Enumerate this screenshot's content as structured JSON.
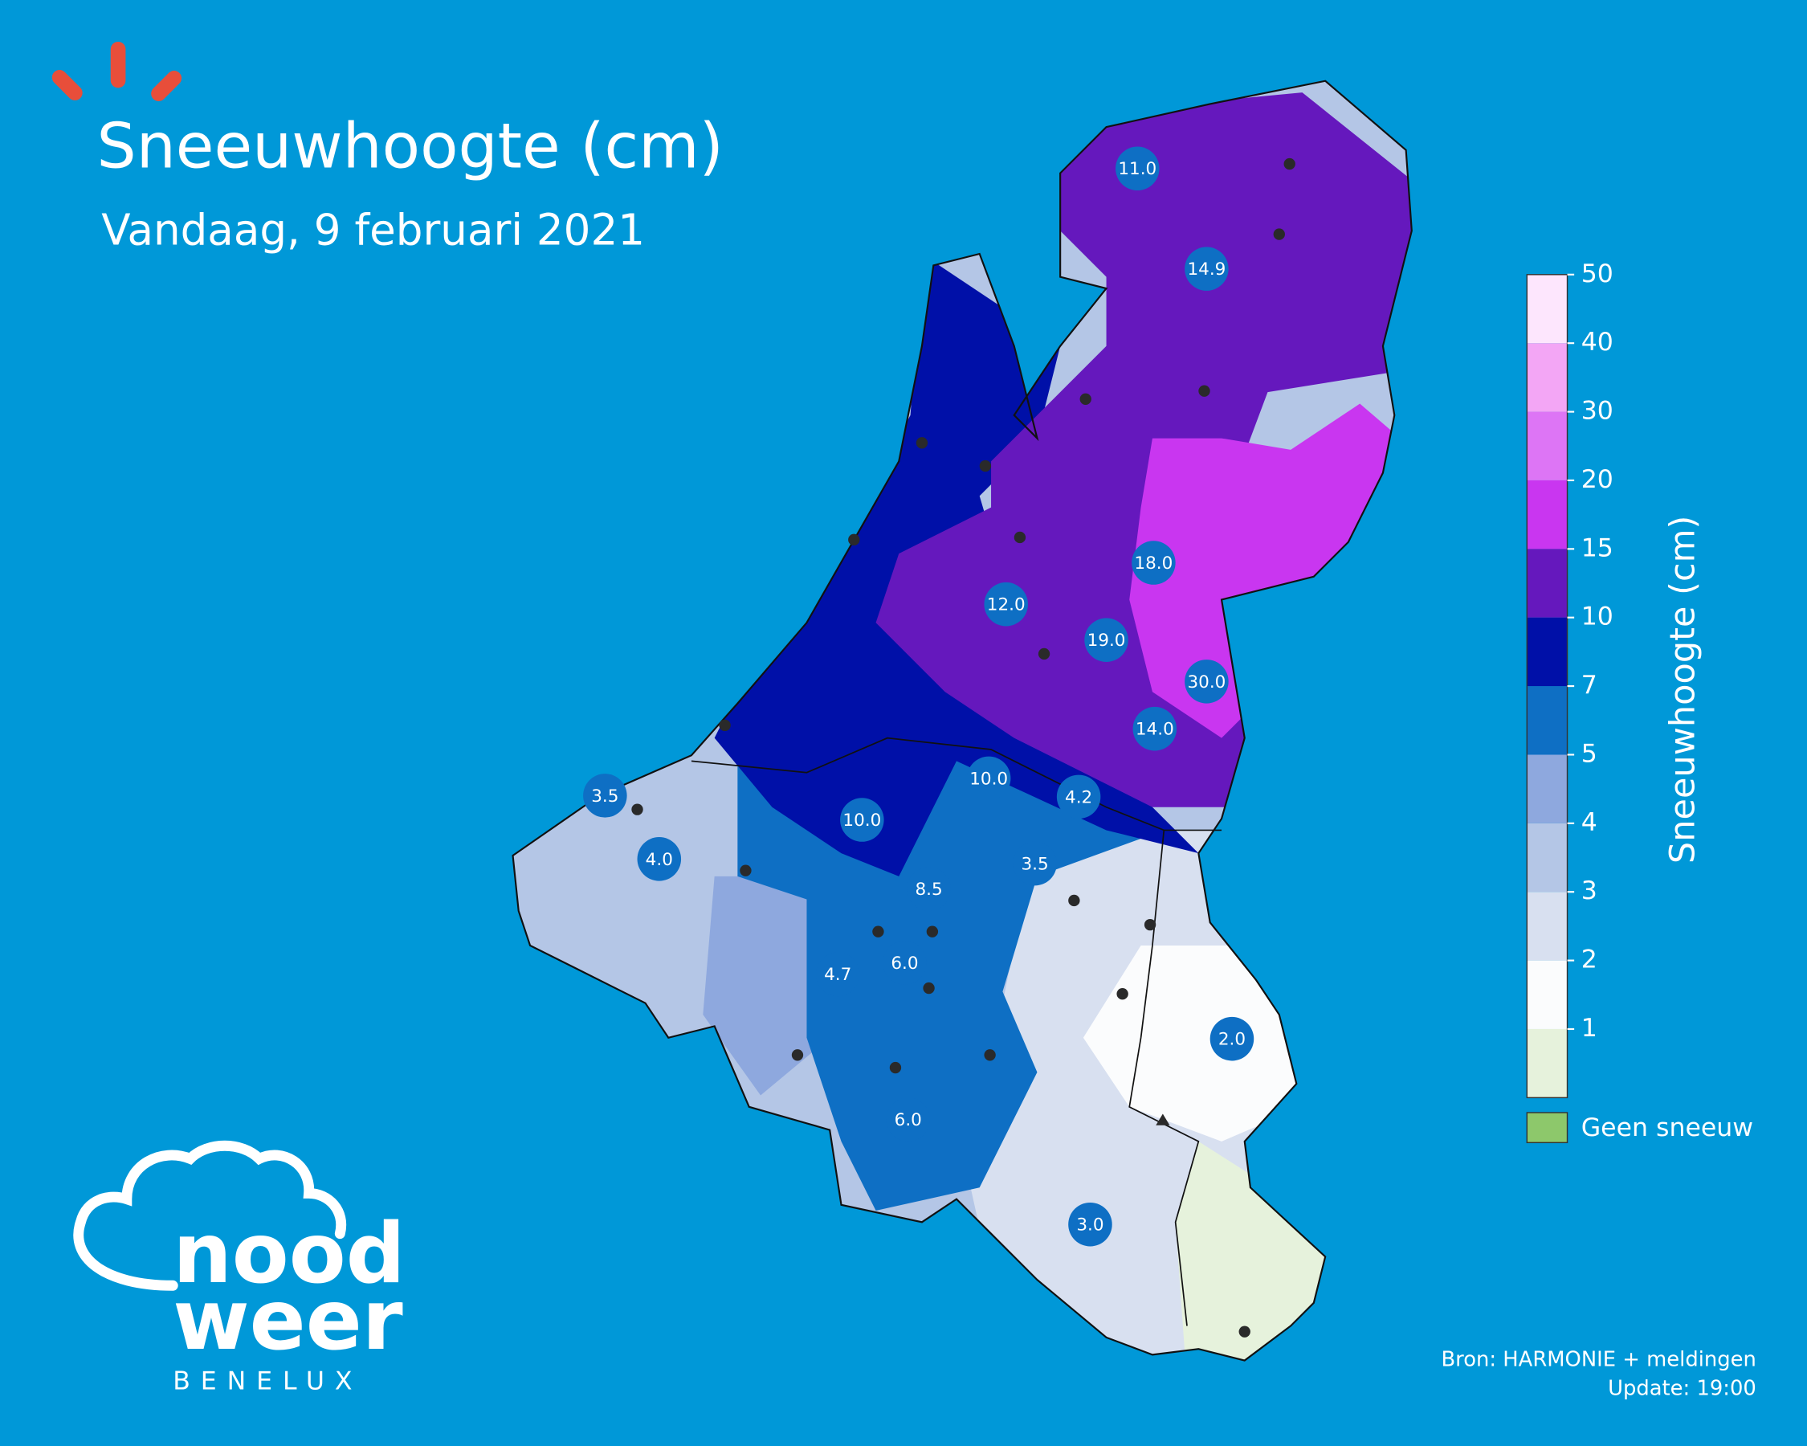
{
  "header": {
    "title": "Sneeuwhoogte (cm)",
    "subtitle": "Vandaag, 9 februari 2021"
  },
  "map": {
    "labels": [
      "11.0",
      "14.9",
      "18.0",
      "12.0",
      "19.0",
      "30.0",
      "14.0",
      "10.0",
      "4.2",
      "3.5",
      "10.0",
      "4.0",
      "3.5",
      "8.5",
      "6.0",
      "4.7",
      "2.0",
      "6.0",
      "3.0"
    ]
  },
  "legend": {
    "title": "Sneeuwhoogte (cm)",
    "ticks": [
      1,
      2,
      3,
      4,
      5,
      7,
      10,
      15,
      20,
      30,
      40,
      50
    ],
    "colors": [
      "#e6f2dc",
      "#fbfcfd",
      "#d8e0f0",
      "#b4c6e6",
      "#8ea8de",
      "#0e6fc4",
      "#0010a8",
      "#6518bd",
      "#c936f0",
      "#dd75f5",
      "#f3a6f5",
      "#fde6fd"
    ],
    "no_snow": {
      "label": "Geen sneeuw",
      "color": "#8dc86b"
    }
  },
  "footer": {
    "source": "Bron: HARMONIE + meldingen",
    "update": "Update: 19:00"
  },
  "logo": {
    "line1": "nood",
    "line2": "weer",
    "line3": "BENELUX"
  }
}
